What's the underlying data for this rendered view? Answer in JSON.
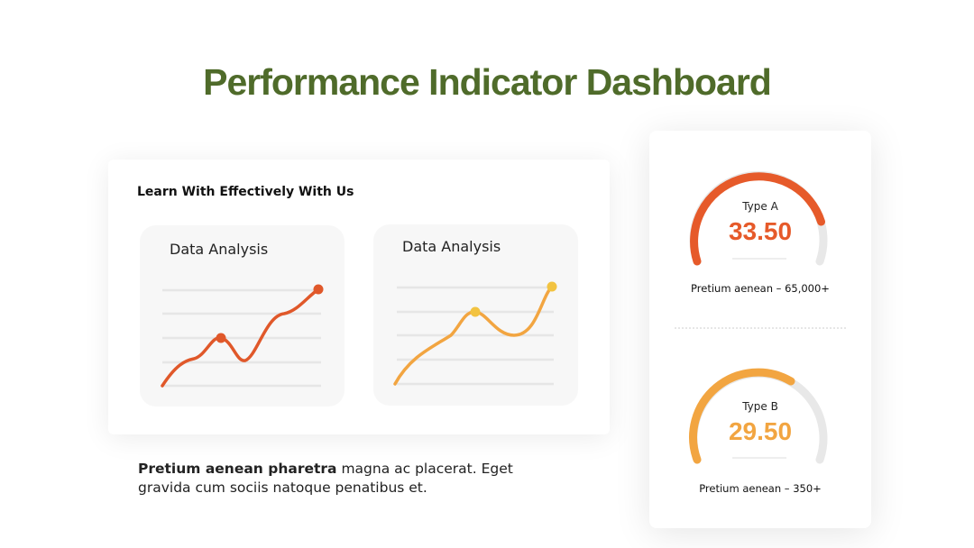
{
  "title": "Performance Indicator Dashboard",
  "card": {
    "heading": "Learn With Effectively With Us",
    "panels": [
      {
        "title": "Data Analysis"
      },
      {
        "title": "Data Analysis"
      }
    ]
  },
  "description": {
    "bold": "Pretium aenean pharetra",
    "text": "magna ac placerat. Eget gravida cum sociis natoque penatibus et."
  },
  "gauges": [
    {
      "label": "Type A",
      "value": "33.50",
      "caption": "Pretium aenean – 65,000+"
    },
    {
      "label": "Type B",
      "value": "29.50",
      "caption": "Pretium aenean – 350+"
    }
  ]
}
